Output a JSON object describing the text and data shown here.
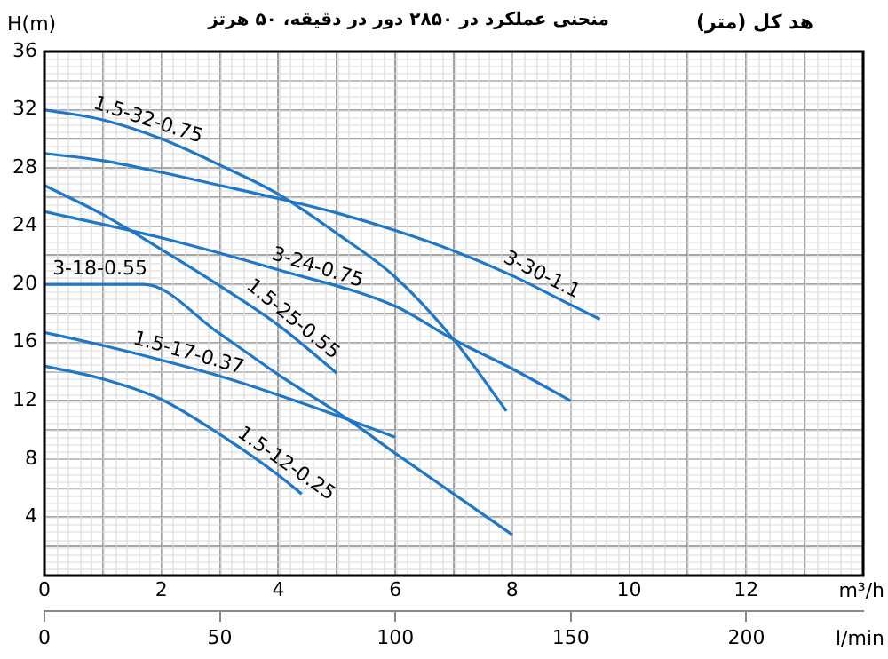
{
  "chart_data": {
    "type": "line",
    "title": "منحنی عملکرد در ۲۸۵۰ دور در دقیقه، ۵۰ هرتز",
    "subtitle": "هد کل (متر)",
    "ylabel": "H(m)",
    "xlabel": "m³/h",
    "x2label": "l/min",
    "xlim": [
      0,
      14
    ],
    "xticks": [
      0,
      {
        "value": 1,
        "label": null
      },
      2,
      {
        "value": 3,
        "label": null
      },
      4,
      {
        "value": 5,
        "label": null
      },
      6,
      {
        "value": 7,
        "label": null
      },
      8,
      {
        "value": 9,
        "label": null
      },
      10,
      {
        "value": 11,
        "label": null
      },
      12,
      {
        "value": 13,
        "label": null
      },
      {
        "value": 14,
        "label": null
      }
    ],
    "x2lim": [
      0,
      233.3
    ],
    "x2ticks": [
      0,
      50,
      100,
      150,
      200
    ],
    "ylim": [
      0,
      36
    ],
    "yticks": [
      {
        "value": 0,
        "label": null
      },
      {
        "value": 2,
        "label": null
      },
      4,
      {
        "value": 6,
        "label": null
      },
      8,
      {
        "value": 10,
        "label": null
      },
      12,
      {
        "value": 14,
        "label": null
      },
      16,
      {
        "value": 18,
        "label": null
      },
      20,
      {
        "value": 22,
        "label": null
      },
      24,
      {
        "value": 26,
        "label": null
      },
      28,
      {
        "value": 30,
        "label": null
      },
      32,
      {
        "value": 34,
        "label": null
      },
      36
    ],
    "grid": true,
    "legend": false,
    "marker": "none",
    "line_style": "solid",
    "series": [
      {
        "name": "1.5-32-0.75",
        "color": "#1f77c8",
        "x": [
          0,
          1,
          2,
          3,
          4,
          5,
          6,
          7,
          7.9
        ],
        "values": [
          32,
          31.3,
          30,
          28.2,
          26.2,
          23.5,
          20.5,
          16.2,
          11.3
        ]
      },
      {
        "name": "3-30-1.1",
        "color": "#1f77c8",
        "x": [
          0,
          1,
          2,
          3,
          4,
          5,
          6,
          7,
          8,
          9,
          9.5
        ],
        "values": [
          29,
          28.5,
          27.7,
          26.8,
          25.9,
          24.9,
          23.7,
          22.3,
          20.6,
          18.6,
          17.6
        ]
      },
      {
        "name": "3-24-0.75",
        "color": "#1f77c8",
        "x": [
          0,
          2,
          4,
          6,
          7,
          8,
          9
        ],
        "values": [
          25,
          23.2,
          21,
          18.5,
          16.2,
          14.2,
          12
        ]
      },
      {
        "name": "1.5-25-0.55",
        "color": "#1f77c8",
        "x": [
          0,
          1,
          2,
          3,
          4,
          5
        ],
        "values": [
          26.8,
          24.8,
          22.4,
          19.9,
          17.2,
          13.9
        ]
      },
      {
        "name": "3-18-0.55",
        "color": "#1f77c8",
        "x": [
          0,
          1.7,
          3,
          4,
          5.2,
          6,
          7,
          8
        ],
        "values": [
          20,
          20,
          16.6,
          13.8,
          10.7,
          8.4,
          5.6,
          2.8
        ]
      },
      {
        "name": "1.5-17-0.37",
        "color": "#1f77c8",
        "x": [
          0,
          1,
          2,
          3,
          4,
          5,
          6
        ],
        "values": [
          16.7,
          15.8,
          14.8,
          13.7,
          12.4,
          11,
          9.5
        ]
      },
      {
        "name": "1.5-12-0.25",
        "color": "#1f77c8",
        "x": [
          0,
          1,
          2,
          3,
          4,
          4.4
        ],
        "values": [
          14.4,
          13.5,
          12.1,
          9.7,
          6.9,
          5.6
        ]
      }
    ]
  }
}
